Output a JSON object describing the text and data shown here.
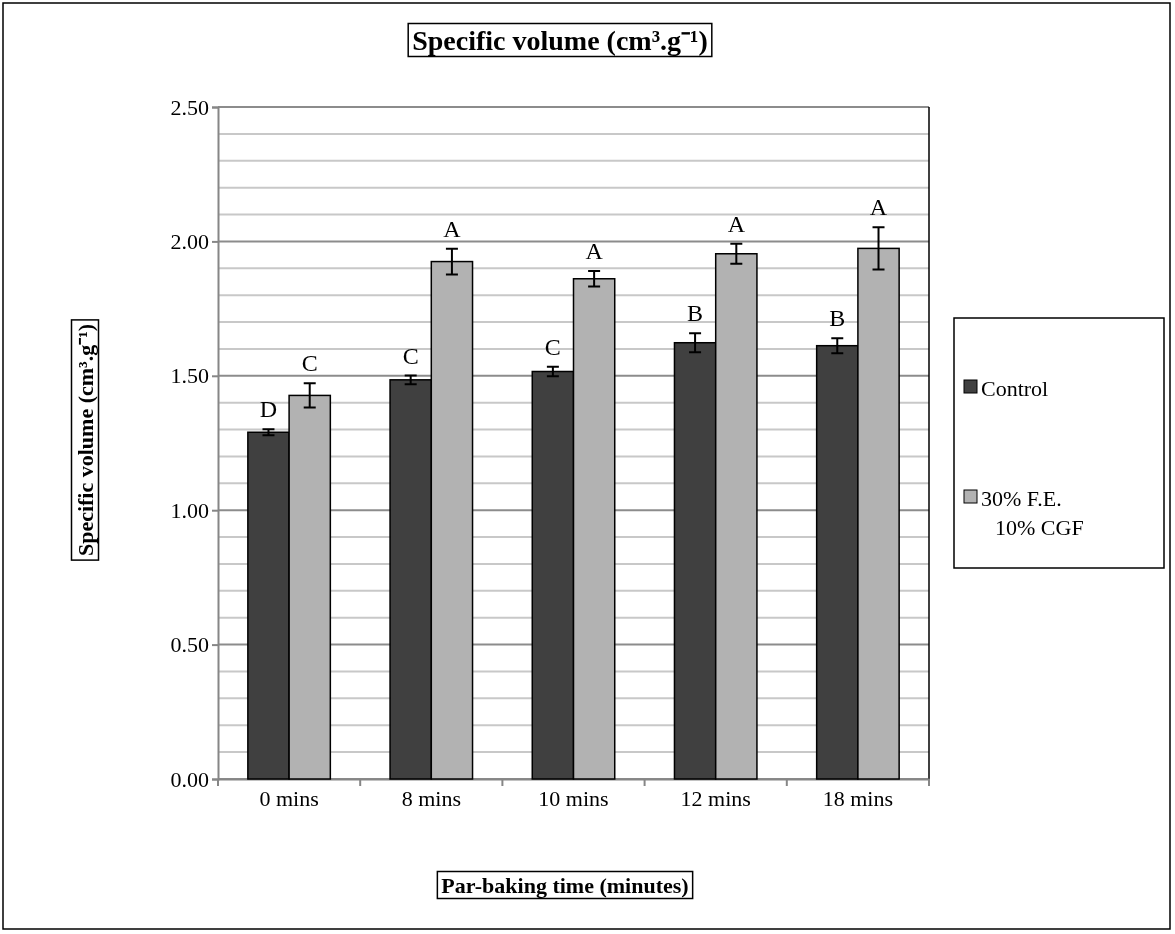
{
  "chart_data": {
    "type": "bar",
    "title": "Specific volume (cm³.g⁻¹)",
    "xlabel": "Par-baking time (minutes)",
    "ylabel": "Specific volume (cm³.g⁻¹)",
    "categories": [
      "0 mins",
      "8 mins",
      "10 mins",
      "12 mins",
      "18 mins"
    ],
    "series": [
      {
        "name": "Control",
        "color": "#404040",
        "values": [
          1.29,
          1.485,
          1.516,
          1.623,
          1.612
        ],
        "errors": [
          0.011,
          0.016,
          0.018,
          0.035,
          0.028
        ],
        "value_labels": [
          "D",
          "C",
          "C",
          "B",
          "B"
        ]
      },
      {
        "name": "30% F.E. 10% CGF",
        "color": "#b2b2b2",
        "values": [
          1.427,
          1.925,
          1.861,
          1.954,
          1.974
        ],
        "errors": [
          0.045,
          0.048,
          0.029,
          0.037,
          0.079
        ],
        "value_labels": [
          "C",
          "A",
          "A",
          "A",
          "A"
        ]
      }
    ],
    "ylim": [
      0,
      2.5
    ],
    "yticks": [
      {
        "value": 0,
        "label": "0.00"
      },
      {
        "value": 0.1,
        "label": null
      },
      {
        "value": 0.2,
        "label": null
      },
      {
        "value": 0.3,
        "label": null
      },
      {
        "value": 0.4,
        "label": null
      },
      {
        "value": 0.5,
        "label": "0.50"
      },
      {
        "value": 0.6,
        "label": null
      },
      {
        "value": 0.7,
        "label": null
      },
      {
        "value": 0.8,
        "label": null
      },
      {
        "value": 0.9,
        "label": null
      },
      {
        "value": 1,
        "label": "1.00"
      },
      {
        "value": 1.1,
        "label": null
      },
      {
        "value": 1.2,
        "label": null
      },
      {
        "value": 1.3,
        "label": null
      },
      {
        "value": 1.4,
        "label": null
      },
      {
        "value": 1.5,
        "label": "1.50"
      },
      {
        "value": 1.6,
        "label": null
      },
      {
        "value": 1.7,
        "label": null
      },
      {
        "value": 1.8,
        "label": null
      },
      {
        "value": 1.9,
        "label": null
      },
      {
        "value": 2,
        "label": "2.00"
      },
      {
        "value": 2.1,
        "label": null
      },
      {
        "value": 2.2,
        "label": null
      },
      {
        "value": 2.3,
        "label": null
      },
      {
        "value": 2.4,
        "label": null
      },
      {
        "value": 2.5,
        "label": "2.50"
      }
    ],
    "grid": true,
    "legend": "right"
  }
}
